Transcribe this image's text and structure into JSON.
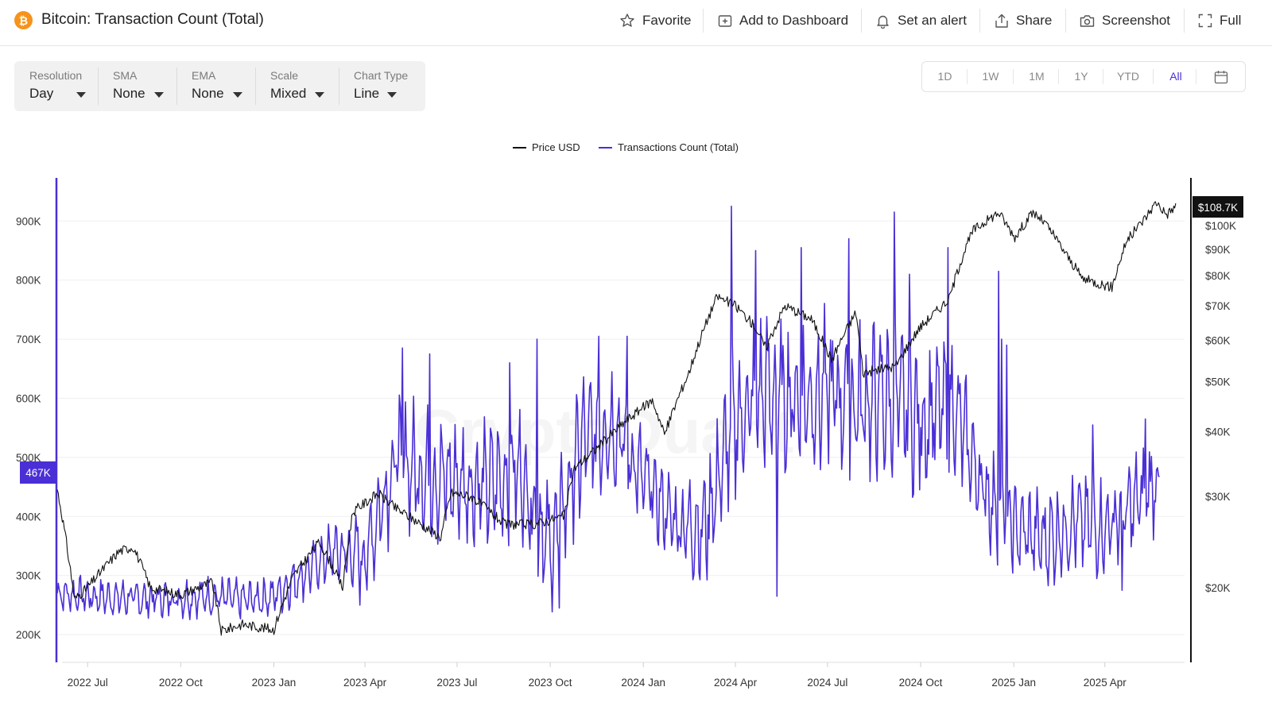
{
  "header": {
    "coin_symbol": "₿",
    "title": "Bitcoin: Transaction Count (Total)",
    "actions": {
      "favorite": "Favorite",
      "add_dashboard": "Add to Dashboard",
      "alert": "Set an alert",
      "share": "Share",
      "screenshot": "Screenshot",
      "full": "Full"
    }
  },
  "controls": [
    {
      "label": "Resolution",
      "value": "Day"
    },
    {
      "label": "SMA",
      "value": "None"
    },
    {
      "label": "EMA",
      "value": "None"
    },
    {
      "label": "Scale",
      "value": "Mixed"
    },
    {
      "label": "Chart Type",
      "value": "Line"
    }
  ],
  "range_buttons": [
    "1D",
    "1W",
    "1M",
    "1Y",
    "YTD",
    "All"
  ],
  "active_range": "All",
  "colors": {
    "accent": "#4b2fd6",
    "tx_series": "#4b2fd6",
    "price_series": "#111111",
    "bitcoin": "#f7931a"
  },
  "chart_data": {
    "type": "line",
    "legend": [
      "Price USD",
      "Transactions Count (Total)"
    ],
    "x_ticks": [
      "2022 Jul",
      "2022 Oct",
      "2023 Jan",
      "2023 Apr",
      "2023 Jul",
      "2023 Oct",
      "2024 Jan",
      "2024 Apr",
      "2024 Jul",
      "2024 Oct",
      "2025 Jan",
      "2025 Apr"
    ],
    "x_range": [
      "2022-06-01",
      "2025-06-25"
    ],
    "left_axis": {
      "ticks": [
        "200K",
        "300K",
        "400K",
        "500K",
        "600K",
        "700K",
        "800K",
        "900K"
      ],
      "values": [
        200000,
        300000,
        400000,
        500000,
        600000,
        700000,
        800000,
        900000
      ],
      "range": [
        153000,
        973000
      ]
    },
    "right_axis": {
      "scale": "log",
      "ticks": [
        "$100K",
        "$90K",
        "$80K",
        "$70K",
        "$60K",
        "$50K",
        "$40K",
        "$30K",
        "$20K"
      ],
      "values": [
        100000,
        90000,
        80000,
        70000,
        60000,
        50000,
        40000,
        30000,
        20000
      ]
    },
    "current_tx_label": "467K",
    "current_price_label": "$108.7K",
    "watermark": "CryptoQuant",
    "series": [
      {
        "name": "Transactions Count (Total)",
        "unit": "transactions",
        "points": [
          [
            "2022-06-01",
            270000
          ],
          [
            "2022-07-01",
            265000
          ],
          [
            "2022-08-01",
            262000
          ],
          [
            "2022-09-01",
            260000
          ],
          [
            "2022-10-01",
            262000
          ],
          [
            "2022-11-01",
            265000
          ],
          [
            "2022-12-01",
            258000
          ],
          [
            "2023-01-01",
            265000
          ],
          [
            "2023-02-01",
            305000
          ],
          [
            "2023-03-01",
            340000
          ],
          [
            "2023-04-01",
            330000
          ],
          [
            "2023-05-01",
            500000
          ],
          [
            "2023-06-01",
            470000
          ],
          [
            "2023-07-01",
            460000
          ],
          [
            "2023-08-01",
            450000
          ],
          [
            "2023-09-01",
            480000
          ],
          [
            "2023-10-01",
            340000
          ],
          [
            "2023-11-01",
            520000
          ],
          [
            "2023-12-01",
            560000
          ],
          [
            "2024-01-01",
            460000
          ],
          [
            "2024-02-01",
            390000
          ],
          [
            "2024-03-01",
            380000
          ],
          [
            "2024-04-01",
            560000
          ],
          [
            "2024-05-01",
            610000
          ],
          [
            "2024-06-01",
            600000
          ],
          [
            "2024-07-01",
            610000
          ],
          [
            "2024-08-01",
            590000
          ],
          [
            "2024-09-01",
            600000
          ],
          [
            "2024-10-01",
            560000
          ],
          [
            "2024-11-01",
            590000
          ],
          [
            "2024-12-01",
            450000
          ],
          [
            "2025-01-01",
            380000
          ],
          [
            "2025-02-01",
            360000
          ],
          [
            "2025-03-01",
            390000
          ],
          [
            "2025-04-01",
            380000
          ],
          [
            "2025-05-01",
            420000
          ],
          [
            "2025-05-25",
            467000
          ]
        ],
        "swing": [
          [
            "2022-06-01",
            35000
          ],
          [
            "2023-01-01",
            40000
          ],
          [
            "2023-03-01",
            60000
          ],
          [
            "2023-05-01",
            130000
          ],
          [
            "2023-09-01",
            120000
          ],
          [
            "2023-11-01",
            140000
          ],
          [
            "2024-02-01",
            80000
          ],
          [
            "2024-04-01",
            160000
          ],
          [
            "2024-10-01",
            150000
          ],
          [
            "2025-01-01",
            90000
          ],
          [
            "2025-05-25",
            100000
          ]
        ],
        "spikes": [
          [
            "2023-05-08",
            685000
          ],
          [
            "2023-06-04",
            675000
          ],
          [
            "2023-08-22",
            660000
          ],
          [
            "2023-09-18",
            700000
          ],
          [
            "2023-11-18",
            705000
          ],
          [
            "2023-12-16",
            705000
          ],
          [
            "2024-03-28",
            925000
          ],
          [
            "2024-04-21",
            850000
          ],
          [
            "2024-06-05",
            855000
          ],
          [
            "2024-07-22",
            870000
          ],
          [
            "2024-09-05",
            915000
          ],
          [
            "2024-09-20",
            810000
          ],
          [
            "2024-10-28",
            855000
          ],
          [
            "2024-12-17",
            815000
          ],
          [
            "2024-12-20",
            700000
          ],
          [
            "2024-12-25",
            690000
          ],
          [
            "2025-03-20",
            555000
          ],
          [
            "2025-05-11",
            565000
          ],
          [
            "2023-10-10",
            245000
          ],
          [
            "2024-05-12",
            265000
          ],
          [
            "2025-04-18",
            275000
          ],
          [
            "2025-05-25",
            467000
          ]
        ]
      },
      {
        "name": "Price USD",
        "unit": "USD",
        "points": [
          [
            "2022-06-01",
            31000
          ],
          [
            "2022-06-12",
            23000
          ],
          [
            "2022-06-18",
            19000
          ],
          [
            "2022-07-01",
            20000
          ],
          [
            "2022-08-01",
            23500
          ],
          [
            "2022-08-15",
            24000
          ],
          [
            "2022-09-01",
            20000
          ],
          [
            "2022-10-01",
            19400
          ],
          [
            "2022-11-01",
            20500
          ],
          [
            "2022-11-10",
            16500
          ],
          [
            "2022-12-01",
            17000
          ],
          [
            "2023-01-01",
            16600
          ],
          [
            "2023-01-20",
            21000
          ],
          [
            "2023-02-15",
            24500
          ],
          [
            "2023-03-10",
            20000
          ],
          [
            "2023-03-20",
            28000
          ],
          [
            "2023-04-14",
            30400
          ],
          [
            "2023-05-01",
            28500
          ],
          [
            "2023-06-15",
            25000
          ],
          [
            "2023-06-25",
            30500
          ],
          [
            "2023-07-15",
            30000
          ],
          [
            "2023-08-17",
            26500
          ],
          [
            "2023-09-15",
            26500
          ],
          [
            "2023-10-15",
            27500
          ],
          [
            "2023-10-25",
            34000
          ],
          [
            "2023-11-15",
            37000
          ],
          [
            "2023-12-15",
            42000
          ],
          [
            "2024-01-10",
            46000
          ],
          [
            "2024-01-22",
            39500
          ],
          [
            "2024-02-15",
            52000
          ],
          [
            "2024-03-14",
            73000
          ],
          [
            "2024-04-01",
            70000
          ],
          [
            "2024-04-20",
            64000
          ],
          [
            "2024-05-01",
            58000
          ],
          [
            "2024-05-20",
            70000
          ],
          [
            "2024-06-15",
            66000
          ],
          [
            "2024-07-05",
            55000
          ],
          [
            "2024-07-29",
            68000
          ],
          [
            "2024-08-05",
            52000
          ],
          [
            "2024-09-06",
            53500
          ],
          [
            "2024-09-30",
            63500
          ],
          [
            "2024-10-29",
            72000
          ],
          [
            "2024-11-12",
            88000
          ],
          [
            "2024-11-22",
            98000
          ],
          [
            "2024-12-17",
            106000
          ],
          [
            "2025-01-02",
            95000
          ],
          [
            "2025-01-20",
            106000
          ],
          [
            "2025-02-01",
            101000
          ],
          [
            "2025-02-25",
            86000
          ],
          [
            "2025-03-10",
            79000
          ],
          [
            "2025-04-08",
            76000
          ],
          [
            "2025-04-22",
            93000
          ],
          [
            "2025-05-10",
            103000
          ],
          [
            "2025-05-22",
            111000
          ],
          [
            "2025-06-01",
            105000
          ],
          [
            "2025-06-10",
            109000
          ]
        ]
      }
    ]
  }
}
